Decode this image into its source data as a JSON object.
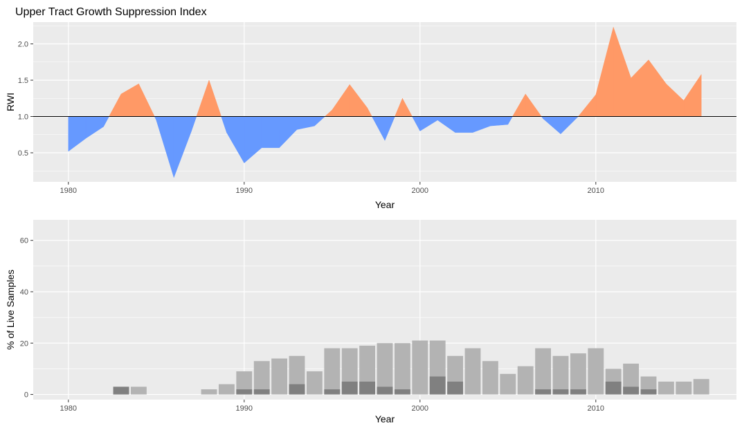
{
  "chart_data": [
    {
      "type": "area",
      "title": "Upper Tract Growth Suppression Index",
      "xlabel": "Year",
      "ylabel": "RWI",
      "xlim": [
        1978,
        2018
      ],
      "ylim": [
        0.1,
        2.3
      ],
      "xticks": [
        1980,
        1990,
        2000,
        2010
      ],
      "yticks": [
        0.5,
        1.0,
        1.5,
        2.0
      ],
      "ytick_labels": [
        "0.5",
        "1.0",
        "1.5",
        "2.0"
      ],
      "baseline": 1.0,
      "grid": true,
      "colors": {
        "above": "#ff9966",
        "below": "#6699ff",
        "panel": "#ebebeb",
        "grid": "#ffffff",
        "baseline": "#000000"
      },
      "x": [
        1980,
        1981,
        1982,
        1983,
        1984,
        1985,
        1986,
        1987,
        1988,
        1989,
        1990,
        1991,
        1992,
        1993,
        1994,
        1995,
        1996,
        1997,
        1998,
        1999,
        2000,
        2001,
        2002,
        2003,
        2004,
        2005,
        2006,
        2007,
        2008,
        2009,
        2010,
        2011,
        2012,
        2013,
        2014,
        2015,
        2016
      ],
      "values": [
        0.52,
        0.7,
        0.86,
        1.31,
        1.45,
        0.95,
        0.16,
        0.8,
        1.5,
        0.78,
        0.36,
        0.57,
        0.57,
        0.82,
        0.87,
        1.09,
        1.44,
        1.12,
        0.67,
        1.25,
        0.8,
        0.95,
        0.78,
        0.78,
        0.87,
        0.89,
        1.31,
        0.97,
        0.76,
        1.0,
        1.3,
        2.23,
        1.53,
        1.78,
        1.45,
        1.22,
        1.58
      ]
    },
    {
      "type": "bar",
      "title": "",
      "xlabel": "Year",
      "ylabel": "% of Live Samples",
      "xlim": [
        1978,
        2018
      ],
      "ylim": [
        -2,
        68
      ],
      "xticks": [
        1980,
        1990,
        2000,
        2010
      ],
      "yticks": [
        0,
        20,
        40,
        60
      ],
      "grid": true,
      "colors": {
        "light": "#b3b3b3",
        "dark": "#808080",
        "panel": "#ebebeb",
        "grid": "#ffffff"
      },
      "x": [
        1980,
        1981,
        1982,
        1983,
        1984,
        1985,
        1986,
        1987,
        1988,
        1989,
        1990,
        1991,
        1992,
        1993,
        1994,
        1995,
        1996,
        1997,
        1998,
        1999,
        2000,
        2001,
        2002,
        2003,
        2004,
        2005,
        2006,
        2007,
        2008,
        2009,
        2010,
        2011,
        2012,
        2013,
        2014,
        2015,
        2016
      ],
      "series": [
        {
          "values": [
            0,
            0,
            0,
            3,
            3,
            0,
            0,
            0,
            2,
            4,
            9,
            13,
            14,
            15,
            9,
            18,
            18,
            19,
            20,
            20,
            21,
            21,
            15,
            18,
            13,
            8,
            11,
            18,
            15,
            16,
            18,
            10,
            12,
            7,
            5,
            5,
            6
          ]
        },
        {
          "values": [
            0,
            0,
            0,
            3,
            0,
            0,
            0,
            0,
            0,
            0,
            2,
            2,
            0,
            4,
            0,
            2,
            5,
            5,
            3,
            2,
            0,
            7,
            5,
            0,
            0,
            0,
            0,
            2,
            2,
            2,
            0,
            5,
            3,
            2,
            0,
            0,
            0
          ]
        }
      ]
    }
  ]
}
